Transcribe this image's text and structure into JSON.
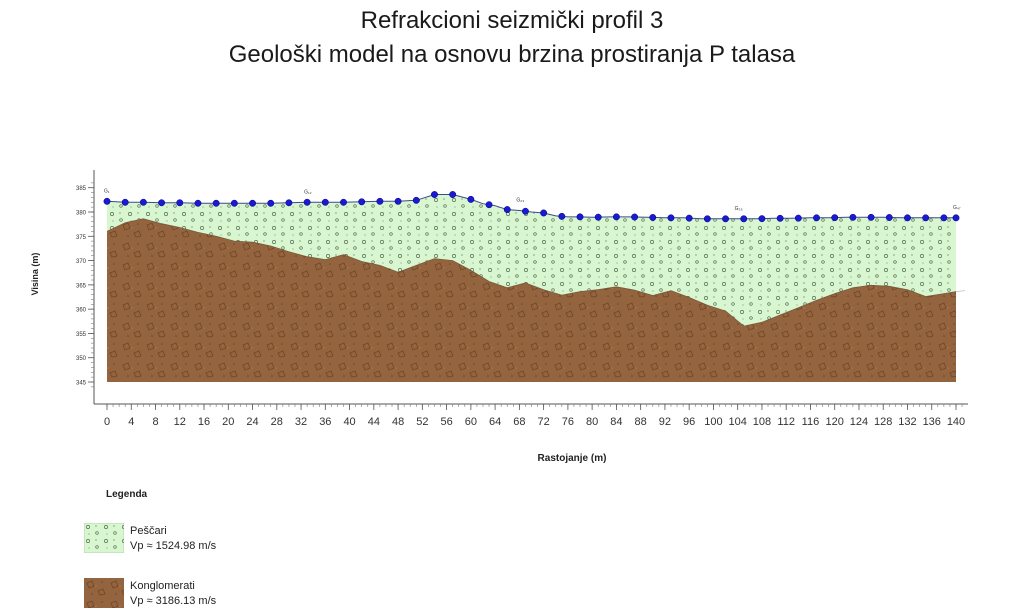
{
  "chart_data": {
    "type": "area",
    "title": "Refrakcioni seizmički profil 3",
    "subtitle": "Geološki model na osnovu brzina prostiranja P talasa",
    "xlabel": "Rastojanje (m)",
    "ylabel": "Visina (m)",
    "xlim": [
      0,
      140
    ],
    "ylim": [
      345,
      387
    ],
    "x_ticks": [
      0,
      4,
      8,
      12,
      16,
      20,
      24,
      28,
      32,
      36,
      40,
      44,
      48,
      52,
      56,
      60,
      64,
      68,
      72,
      76,
      80,
      84,
      88,
      92,
      96,
      100,
      104,
      108,
      112,
      116,
      120,
      124,
      128,
      132,
      136,
      140
    ],
    "y_ticks": [
      345,
      350,
      355,
      360,
      365,
      370,
      375,
      380,
      385
    ],
    "grid": false,
    "legend_position": "bottom-left",
    "surface": {
      "x": [
        0,
        3,
        6,
        9,
        12,
        15,
        18,
        21,
        24,
        27,
        30,
        33,
        36,
        39,
        42,
        45,
        48,
        51,
        54,
        57,
        60,
        62,
        64,
        66,
        68,
        70,
        72,
        74,
        76,
        78,
        80,
        83,
        86,
        89,
        92,
        95,
        98,
        101,
        104,
        107,
        110,
        113,
        116,
        119,
        122,
        125,
        128,
        131,
        134,
        137,
        140
      ],
      "y": [
        382.2,
        382,
        382,
        381.9,
        381.9,
        381.8,
        381.8,
        381.8,
        381.8,
        381.8,
        381.9,
        382,
        382,
        382,
        382.1,
        382.2,
        382.2,
        382.4,
        383.6,
        383.6,
        382.6,
        381.7,
        381.3,
        380.5,
        380.3,
        380,
        379.8,
        379.2,
        379,
        379,
        378.9,
        379,
        379,
        378.9,
        378.8,
        378.8,
        378.6,
        378.6,
        378.6,
        378.6,
        378.7,
        378.7,
        378.8,
        378.8,
        378.9,
        378.9,
        378.9,
        378.8,
        378.8,
        378.8,
        378.8
      ]
    },
    "geophones": {
      "x": [
        0,
        3,
        6,
        9,
        12,
        15,
        18,
        21,
        24,
        27,
        30,
        33,
        36,
        39,
        42,
        45,
        48,
        51,
        54,
        57,
        60,
        63,
        66,
        69,
        72,
        75,
        78,
        81,
        84,
        87,
        90,
        93,
        96,
        99,
        102,
        105,
        108,
        111,
        114,
        117,
        120,
        123,
        126,
        129,
        132,
        135,
        138,
        141
      ],
      "labels": [
        {
          "x": 0,
          "text": "G₁"
        },
        {
          "x": 33,
          "text": "G₁₂"
        },
        {
          "x": 68,
          "text": "G₂₃"
        },
        {
          "x": 104,
          "text": "G₃₅"
        },
        {
          "x": 140,
          "text": "G₄₇"
        }
      ]
    },
    "boundary": {
      "x": [
        0,
        3,
        6,
        9,
        12,
        15,
        18,
        21,
        24,
        27,
        30,
        33,
        36,
        39,
        42,
        45,
        48,
        51,
        54,
        57,
        60,
        63,
        66,
        69,
        72,
        75,
        78,
        81,
        84,
        87,
        90,
        93,
        96,
        99,
        102,
        105,
        108,
        111,
        114,
        117,
        120,
        123,
        126,
        129,
        132,
        135,
        138,
        140
      ],
      "y": [
        376,
        377.8,
        378.6,
        377.6,
        376.8,
        375.8,
        375,
        374,
        373.8,
        373,
        371.8,
        370.8,
        370.2,
        371.2,
        369.8,
        369,
        367.6,
        369,
        370.4,
        370,
        368,
        365.7,
        364.4,
        365.4,
        364,
        362.9,
        363.6,
        364,
        364.6,
        363.9,
        362.8,
        363.8,
        362.4,
        360.8,
        359.6,
        356.5,
        357.3,
        358.8,
        360.3,
        361.8,
        363.2,
        364.4,
        364.9,
        364.7,
        364,
        362.6,
        363.2,
        363.6
      ]
    },
    "bottom": 345,
    "layers": [
      {
        "name": "Peščari",
        "velocity": "Vp ≈ 1524.98 m/s",
        "color": "#d8f6d0",
        "pattern": "circles"
      },
      {
        "name": "Konglomerati",
        "velocity": "Vp ≈ 3186.13 m/s",
        "color": "#94643f",
        "pattern": "stones"
      }
    ]
  },
  "legend": {
    "title": "Legenda",
    "items": [
      {
        "name": "Peščari",
        "velocity": "Vp ≈ 1524.98 m/s"
      },
      {
        "name": "Konglomerati",
        "velocity": "Vp ≈ 3186.13 m/s"
      }
    ]
  }
}
